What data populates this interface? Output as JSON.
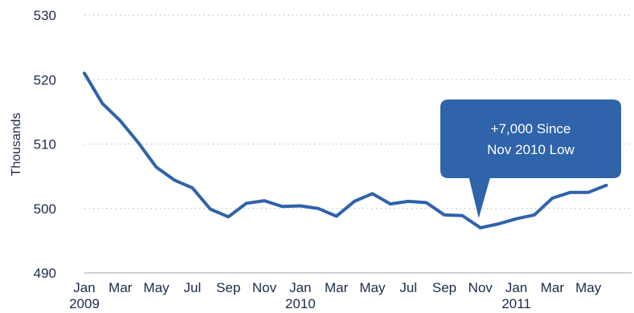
{
  "chart_data": {
    "type": "line",
    "title": "",
    "xlabel": "",
    "ylabel": "Thousands",
    "ylim": [
      490,
      530
    ],
    "yticks": [
      "530",
      "520",
      "510",
      "500",
      "490"
    ],
    "ytick_values": [
      530,
      520,
      510,
      500,
      490
    ],
    "grid": "horizontal dotted",
    "x_tick_labels": [
      "Jan",
      "Mar",
      "May",
      "Jul",
      "Sep",
      "Nov",
      "Jan",
      "Mar",
      "May",
      "Jul",
      "Sep",
      "Nov",
      "Jan",
      "Mar",
      "May"
    ],
    "x_tick_month_index": [
      0,
      2,
      4,
      6,
      8,
      10,
      12,
      14,
      16,
      18,
      20,
      22,
      24,
      26,
      28
    ],
    "year_labels": [
      {
        "label": "2009",
        "month_index": 0
      },
      {
        "label": "2010",
        "month_index": 12
      },
      {
        "label": "2011",
        "month_index": 24
      }
    ],
    "x": [
      "Jan 2009",
      "Feb 2009",
      "Mar 2009",
      "Apr 2009",
      "May 2009",
      "Jun 2009",
      "Jul 2009",
      "Aug 2009",
      "Sep 2009",
      "Oct 2009",
      "Nov 2009",
      "Dec 2009",
      "Jan 2010",
      "Feb 2010",
      "Mar 2010",
      "Apr 2010",
      "May 2010",
      "Jun 2010",
      "Jul 2010",
      "Aug 2010",
      "Sep 2010",
      "Oct 2010",
      "Nov 2010",
      "Dec 2010",
      "Jan 2011",
      "Feb 2011",
      "Mar 2011",
      "Apr 2011",
      "May 2011",
      "Jun 2011"
    ],
    "series": [
      {
        "values": [
          521.0,
          516.3,
          513.6,
          510.2,
          506.4,
          504.4,
          503.2,
          499.9,
          498.7,
          500.8,
          501.2,
          500.3,
          500.4,
          500.0,
          498.8,
          501.1,
          502.3,
          500.7,
          501.1,
          500.9,
          499.0,
          498.9,
          497.0,
          497.6,
          498.4,
          499.0,
          501.6,
          502.5,
          502.5,
          503.6
        ]
      }
    ],
    "line_color": "#2f63aa",
    "callout": {
      "text_line1": "+7,000 Since",
      "text_line2": "Nov 2010 Low",
      "anchor_month_index": 22,
      "color": "#2f63aa",
      "text_color": "#ffffff"
    }
  }
}
